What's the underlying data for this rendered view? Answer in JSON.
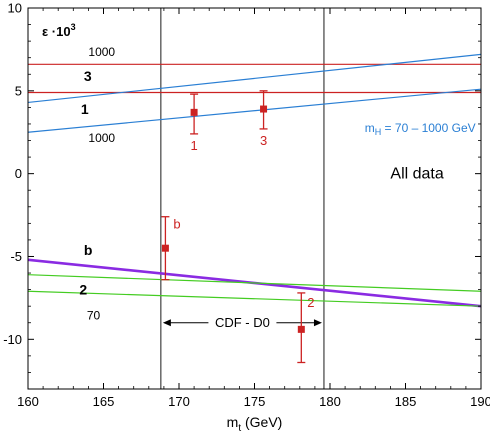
{
  "chart_data": {
    "type": "scatter",
    "title": "",
    "xlabel": "",
    "ylabel": "",
    "xlim": [
      160,
      190
    ],
    "ylim": [
      -13,
      10
    ],
    "x_ticks": [
      "160",
      "165",
      "170",
      "175",
      "180",
      "185",
      "190"
    ],
    "x_tick_values": [
      160,
      165,
      170,
      175,
      180,
      185,
      190
    ],
    "y_ticks": [
      "10",
      "5",
      "0",
      "-5",
      "-10"
    ],
    "y_tick_values": [
      10,
      5,
      0,
      -5,
      -10
    ],
    "x_axis_label": {
      "main": "m",
      "sub": "t",
      "unit": " (GeV)"
    },
    "y_axis_label": {
      "main": "ε ·10",
      "sup": "3"
    },
    "grid": false,
    "vertical_lines": [
      168.8,
      179.6
    ],
    "cdf_d0_label": "CDF - D0",
    "mh_label": {
      "main": "m",
      "sub": "H",
      "rest": " = 70 – 1000 GeV"
    },
    "all_data_label": "All data",
    "lines": [
      {
        "label": "3",
        "color": "#cc2222",
        "width": 1.2,
        "points": [
          [
            160,
            6.6
          ],
          [
            190,
            6.6
          ]
        ]
      },
      {
        "label": "1",
        "color": "#cc2222",
        "width": 1.2,
        "points": [
          [
            160,
            4.9
          ],
          [
            190,
            4.9
          ]
        ]
      },
      {
        "label": "1000",
        "color": "#2a7fd4",
        "width": 1.2,
        "points": [
          [
            160,
            4.3
          ],
          [
            190,
            7.2
          ]
        ]
      },
      {
        "label": "1000",
        "color": "#2a7fd4",
        "width": 1.2,
        "points": [
          [
            160,
            2.5
          ],
          [
            190,
            5.1
          ]
        ]
      },
      {
        "label": "b",
        "color": "#8a2be2",
        "width": 2.6,
        "points": [
          [
            160,
            -5.2
          ],
          [
            190,
            -8.0
          ]
        ]
      },
      {
        "label": "2",
        "color": "#44cc22",
        "width": 1.2,
        "points": [
          [
            160,
            -6.1
          ],
          [
            190,
            -7.1
          ]
        ]
      },
      {
        "label": "70",
        "color": "#44cc22",
        "width": 1.2,
        "points": [
          [
            160,
            -7.1
          ],
          [
            190,
            -8.0
          ]
        ]
      }
    ],
    "line_labels": [
      {
        "text": "1000",
        "x": 164.0,
        "y": 7.4,
        "bold": false
      },
      {
        "text": "3",
        "x": 163.7,
        "y": 5.9,
        "bold": true
      },
      {
        "text": "1",
        "x": 163.5,
        "y": 3.9,
        "bold": true
      },
      {
        "text": "1000",
        "x": 164.0,
        "y": 2.2,
        "bold": false
      },
      {
        "text": "b",
        "x": 163.7,
        "y": -4.6,
        "bold": true
      },
      {
        "text": "2",
        "x": 163.4,
        "y": -7.0,
        "bold": true
      },
      {
        "text": "70",
        "x": 163.9,
        "y": -8.5,
        "bold": false
      }
    ],
    "points": [
      {
        "label": "1",
        "x": 171.0,
        "y": 3.7,
        "err_low": 2.4,
        "err_high": 4.8,
        "label_pos": "below"
      },
      {
        "label": "3",
        "x": 175.6,
        "y": 3.9,
        "err_low": 2.7,
        "err_high": 5.0,
        "label_pos": "below"
      },
      {
        "label": "b",
        "x": 169.1,
        "y": -4.5,
        "err_low": -6.4,
        "err_high": -2.6,
        "label_pos": "right"
      },
      {
        "label": "2",
        "x": 178.1,
        "y": -9.4,
        "err_low": -11.4,
        "err_high": -7.2,
        "label_pos": "upper-right"
      }
    ],
    "point_color": "#cc2222"
  }
}
